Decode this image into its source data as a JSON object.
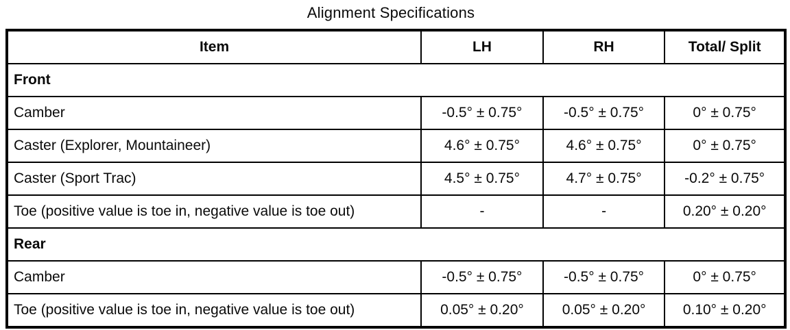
{
  "title": "Alignment Specifications",
  "table": {
    "headers": [
      "Item",
      "LH",
      "RH",
      "Total/ Split"
    ],
    "sections": [
      {
        "name": "Front",
        "rows": [
          {
            "item": "Camber",
            "lh": "-0.5° ± 0.75°",
            "rh": "-0.5° ± 0.75°",
            "total": "0° ± 0.75°"
          },
          {
            "item": "Caster (Explorer, Mountaineer)",
            "lh": "4.6° ± 0.75°",
            "rh": "4.6° ± 0.75°",
            "total": "0° ± 0.75°"
          },
          {
            "item": "Caster (Sport Trac)",
            "lh": "4.5° ± 0.75°",
            "rh": "4.7° ± 0.75°",
            "total": "-0.2° ± 0.75°"
          },
          {
            "item": "Toe (positive value is toe in, negative value is toe out)",
            "lh": "-",
            "rh": "-",
            "total": "0.20° ± 0.20°"
          }
        ]
      },
      {
        "name": "Rear",
        "rows": [
          {
            "item": "Camber",
            "lh": "-0.5° ± 0.75°",
            "rh": "-0.5° ± 0.75°",
            "total": "0° ± 0.75°"
          },
          {
            "item": "Toe (positive value is toe in, negative value is toe out)",
            "lh": "0.05° ± 0.20°",
            "rh": "0.05° ± 0.20°",
            "total": "0.10° ± 0.20°"
          }
        ]
      }
    ]
  }
}
